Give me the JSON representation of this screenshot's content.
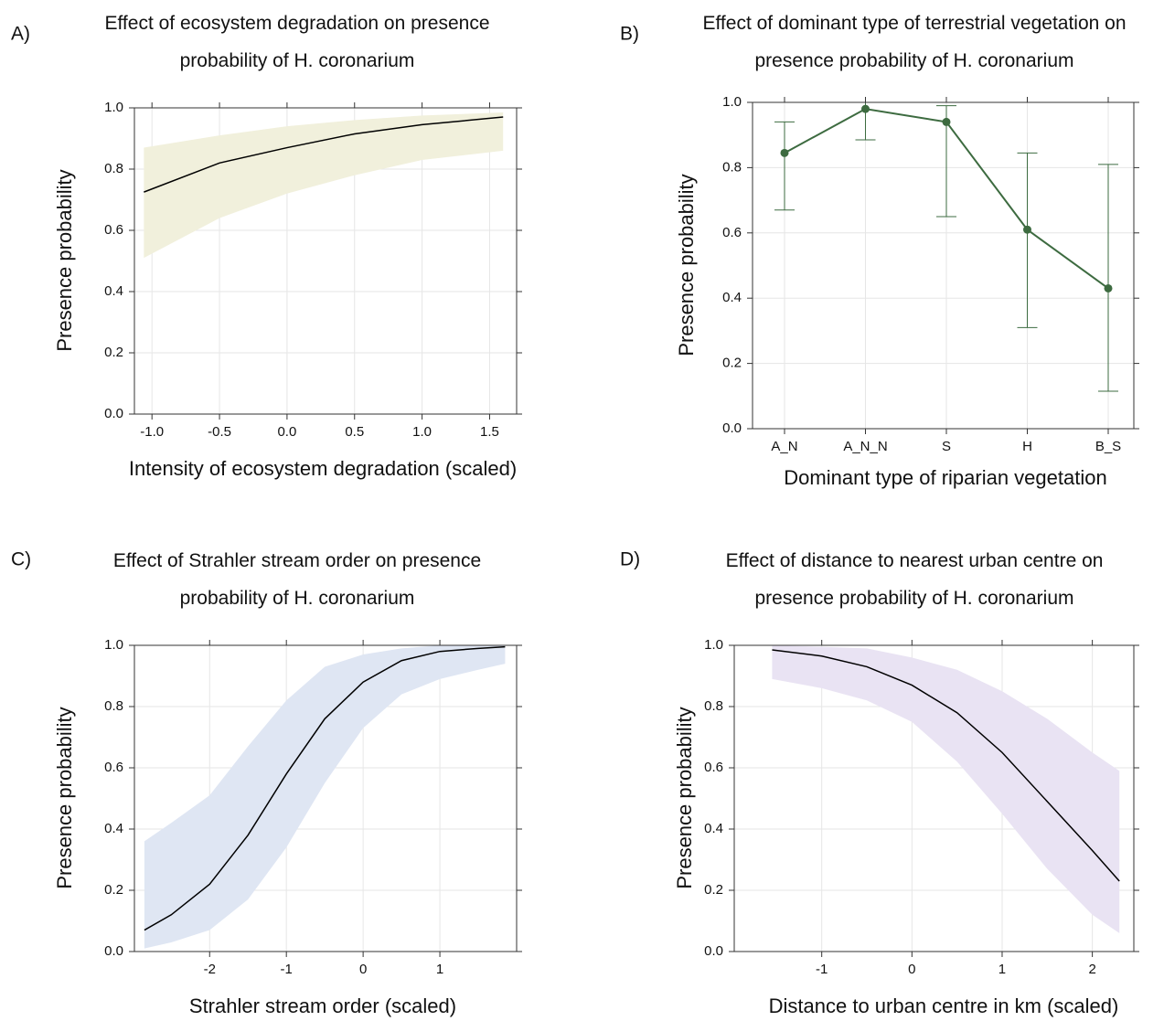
{
  "chart_data": [
    {
      "type": "line",
      "panel_label": "A)",
      "title": "Effect of ecosystem degradation on presence probability of H. coronarium",
      "xlabel": "Intensity of ecosystem degradation (scaled)",
      "ylabel": "Presence probability",
      "x": [
        -1.06,
        -0.5,
        0,
        0.5,
        1.0,
        1.6
      ],
      "values": [
        0.725,
        0.82,
        0.87,
        0.915,
        0.945,
        0.97
      ],
      "lower": [
        0.51,
        0.64,
        0.72,
        0.78,
        0.83,
        0.86
      ],
      "upper": [
        0.87,
        0.91,
        0.94,
        0.96,
        0.975,
        0.985
      ],
      "line_color": "#000000",
      "band_color": "#f1f0dc",
      "xlim": [
        -1.13,
        1.7
      ],
      "ylim": [
        0,
        1
      ],
      "xticks": [
        {
          "value": -1,
          "label": "-1.0"
        },
        -0.5,
        {
          "value": 0,
          "label": "0.0"
        },
        0.5,
        {
          "value": 1,
          "label": "1.0"
        },
        1.5
      ],
      "yticks": [
        {
          "value": 0,
          "label": "0.0"
        },
        0.2,
        0.4,
        0.6,
        0.8,
        {
          "value": 1,
          "label": "1.0"
        }
      ],
      "grid": true
    },
    {
      "type": "errorbar",
      "panel_label": "B)",
      "title": "Effect of dominant type of terrestrial vegetation on presence probability of H. coronarium",
      "xlabel": "Dominant type of riparian vegetation",
      "ylabel": "Presence probability",
      "categories": [
        "A_N",
        "A_N_N",
        "S",
        "H",
        "B_S"
      ],
      "values": [
        0.845,
        0.98,
        0.94,
        0.61,
        0.43
      ],
      "lower": [
        0.67,
        0.885,
        0.65,
        0.31,
        0.115
      ],
      "upper": [
        0.94,
        1.0,
        0.99,
        0.845,
        0.81
      ],
      "color": "#3d6b40",
      "ylim": [
        0,
        1
      ],
      "yticks": [
        {
          "value": 0,
          "label": "0.0"
        },
        0.2,
        0.4,
        0.6,
        0.8,
        {
          "value": 1,
          "label": "1.0"
        }
      ],
      "grid": true
    },
    {
      "type": "line",
      "panel_label": "C)",
      "title": "Effect of Strahler stream order on presence probability of H. coronarium",
      "xlabel": "Strahler stream order (scaled)",
      "ylabel": "Presence probability",
      "x": [
        -2.85,
        -2.5,
        -2,
        -1.5,
        -1,
        -0.5,
        0,
        0.5,
        1,
        1.5,
        1.85
      ],
      "values": [
        0.07,
        0.12,
        0.22,
        0.38,
        0.58,
        0.76,
        0.88,
        0.95,
        0.98,
        0.99,
        0.995
      ],
      "lower": [
        0.01,
        0.03,
        0.07,
        0.17,
        0.34,
        0.55,
        0.73,
        0.84,
        0.89,
        0.92,
        0.94
      ],
      "upper": [
        0.36,
        0.42,
        0.51,
        0.67,
        0.82,
        0.93,
        0.97,
        0.99,
        1.0,
        1.0,
        1.0
      ],
      "line_color": "#000000",
      "band_color": "#dfe6f3",
      "xlim": [
        -2.98,
        2.0
      ],
      "ylim": [
        0,
        1
      ],
      "xticks": [
        -2,
        -1,
        0,
        1
      ],
      "yticks": [
        {
          "value": 0,
          "label": "0.0"
        },
        0.2,
        0.4,
        0.6,
        0.8,
        {
          "value": 1,
          "label": "1.0"
        }
      ],
      "grid": true
    },
    {
      "type": "line",
      "panel_label": "D)",
      "title": "Effect of distance to nearest urban centre on presence probability of H. coronarium",
      "xlabel": "Distance to urban centre in km (scaled)",
      "ylabel": "Presence probability",
      "x": [
        -1.55,
        -1,
        -0.5,
        0,
        0.5,
        1,
        1.5,
        2,
        2.3
      ],
      "values": [
        0.985,
        0.965,
        0.93,
        0.87,
        0.78,
        0.65,
        0.49,
        0.33,
        0.23
      ],
      "lower": [
        0.89,
        0.86,
        0.82,
        0.75,
        0.62,
        0.45,
        0.27,
        0.12,
        0.06
      ],
      "upper": [
        1.0,
        0.995,
        0.99,
        0.96,
        0.92,
        0.85,
        0.76,
        0.65,
        0.59
      ],
      "line_color": "#000000",
      "band_color": "#e9e3f3",
      "xlim": [
        -1.97,
        2.46
      ],
      "ylim": [
        0,
        1
      ],
      "xticks": [
        -1,
        0,
        1,
        2
      ],
      "yticks": [
        {
          "value": 0,
          "label": "0.0"
        },
        0.2,
        0.4,
        0.6,
        0.8,
        {
          "value": 1,
          "label": "1.0"
        }
      ],
      "grid": true
    }
  ]
}
